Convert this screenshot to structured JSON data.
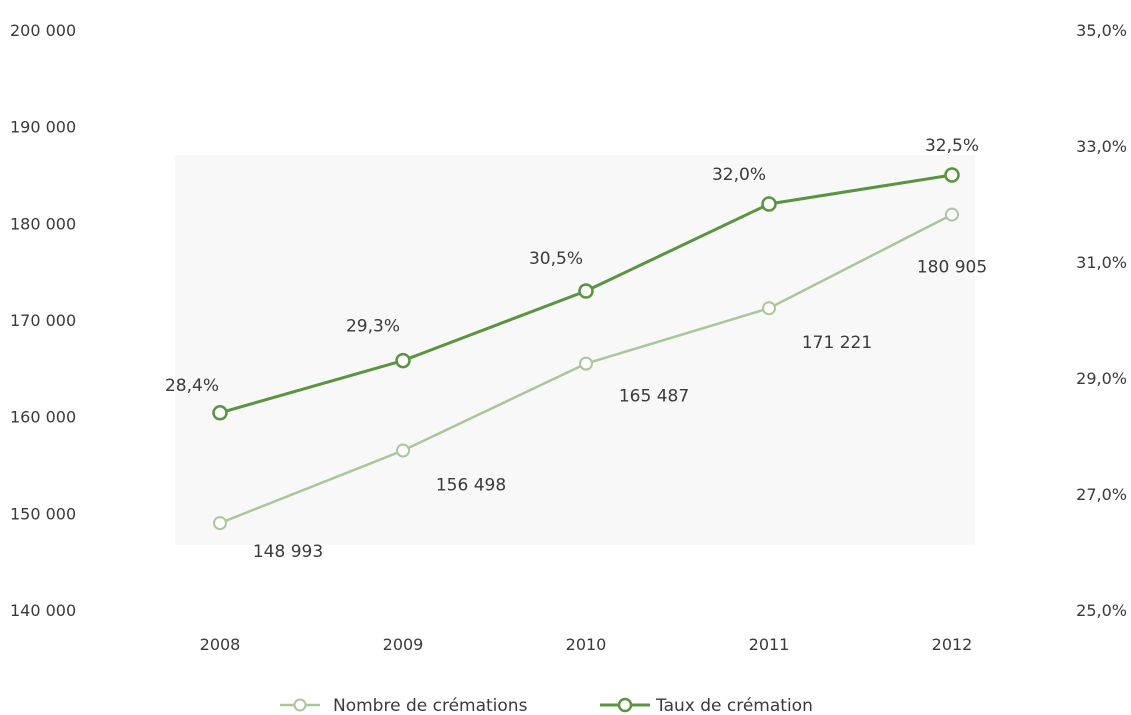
{
  "chart_data": {
    "type": "line",
    "categories": [
      "2008",
      "2009",
      "2010",
      "2011",
      "2012"
    ],
    "series": [
      {
        "name": "Nombre de crémations",
        "axis": "left",
        "color": "#a9c79a",
        "values": [
          148993,
          156498,
          165487,
          171221,
          180905
        ],
        "labels": [
          "148 993",
          "156 498",
          "165 487",
          "171 221",
          "180 905"
        ]
      },
      {
        "name": "Taux de crémation",
        "axis": "right",
        "color": "#5a9440",
        "values": [
          28.4,
          29.3,
          30.5,
          32.0,
          32.5
        ],
        "labels": [
          "28,4%",
          "29,3%",
          "30,5%",
          "32,0%",
          "32,5%"
        ]
      }
    ],
    "y_left": {
      "ylim": [
        140000,
        200000
      ],
      "ticks": [
        200000,
        190000,
        180000,
        170000,
        160000,
        150000,
        140000
      ],
      "tick_labels": [
        "200 000",
        "190 000",
        "180 000",
        "170 000",
        "160 000",
        "150 000",
        "140 000"
      ]
    },
    "y_right": {
      "ylim": [
        25,
        35
      ],
      "ticks": [
        35,
        33,
        31,
        29,
        27,
        25
      ],
      "tick_labels": [
        "35,0%",
        "33,0%",
        "31,0%",
        "29,0%",
        "27,0%",
        "25,0%"
      ]
    },
    "title": "",
    "xlabel": "",
    "grid": false,
    "legend_position": "bottom"
  }
}
